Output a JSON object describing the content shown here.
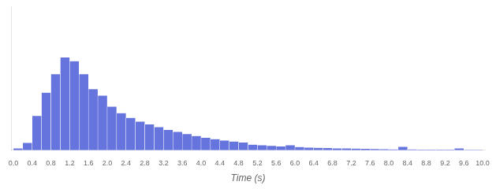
{
  "chart_data": {
    "type": "histogram",
    "x_label": "Time (s)",
    "bins": [
      0,
      0.2,
      0.4,
      0.6,
      0.8,
      1.0,
      1.2,
      1.4,
      1.6,
      1.8,
      2.0,
      2.2,
      2.4,
      2.6,
      2.8,
      3.0,
      3.2,
      3.4,
      3.6,
      3.8,
      4.0,
      4.2,
      4.4,
      4.6,
      4.8,
      5.0,
      5.2,
      5.4,
      5.6,
      5.8,
      6.0,
      6.2,
      6.4,
      6.6,
      6.8,
      7.0,
      7.2,
      7.4,
      7.6,
      7.8,
      8.0,
      8.2,
      8.4,
      8.6,
      8.8,
      9.0,
      9.2,
      9.4,
      9.6,
      9.8,
      10.0
    ],
    "values": [
      0.02,
      0.08,
      0.37,
      0.62,
      0.82,
      1.0,
      0.96,
      0.82,
      0.66,
      0.59,
      0.47,
      0.4,
      0.35,
      0.31,
      0.28,
      0.25,
      0.22,
      0.2,
      0.175,
      0.155,
      0.135,
      0.12,
      0.105,
      0.095,
      0.085,
      0.062,
      0.055,
      0.048,
      0.042,
      0.055,
      0.035,
      0.03,
      0.028,
      0.025,
      0.022,
      0.02,
      0.018,
      0.016,
      0.014,
      0.012,
      0.01,
      0.038,
      0.01,
      0.009,
      0.008,
      0.007,
      0.006,
      0.02,
      0.004,
      0.004
    ],
    "color": "#6674de",
    "xlim": [
      -0.05,
      10.05
    ],
    "xticks": [
      {
        "value": 0,
        "label": "0.0"
      },
      0.4,
      0.8,
      1.2,
      1.6,
      {
        "value": 2,
        "label": "2.0"
      },
      2.4,
      2.8,
      3.2,
      3.6,
      {
        "value": 4,
        "label": "4.0"
      },
      4.4,
      4.8,
      5.2,
      5.6,
      {
        "value": 6,
        "label": "6.0"
      },
      6.4,
      6.8,
      7.2,
      7.6,
      {
        "value": 8,
        "label": "8.0"
      },
      8.4,
      8.8,
      9.2,
      9.6,
      {
        "value": 10,
        "label": "10.0"
      }
    ],
    "ylim": [
      0,
      1.55
    ],
    "grid": false,
    "tick_labels": "x"
  }
}
